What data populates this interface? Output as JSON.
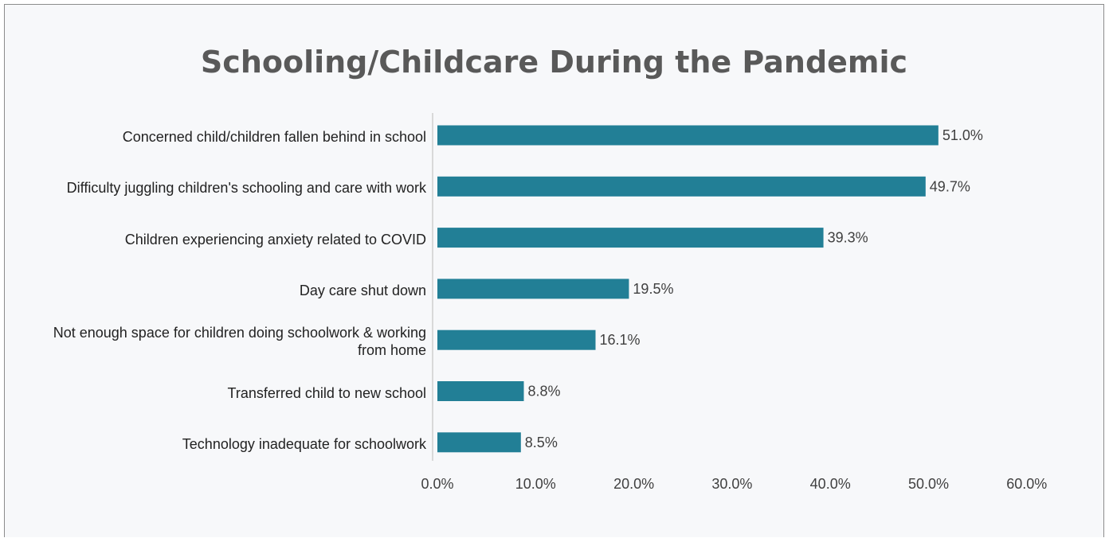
{
  "chart_data": {
    "type": "bar",
    "orientation": "horizontal",
    "title": "Schooling/Childcare During the Pandemic",
    "xlabel": "",
    "ylabel": "",
    "categories": [
      "Concerned child/children fallen behind in school",
      "Difficulty juggling children's schooling and care with work",
      "Children experiencing anxiety related to COVID",
      "Day care shut down",
      "Not enough space for children doing schoolwork & working from home",
      "Transferred child to new school",
      "Technology inadequate for schoolwork"
    ],
    "values": [
      51.0,
      49.7,
      39.3,
      19.5,
      16.1,
      8.8,
      8.5
    ],
    "value_labels": [
      "51.0%",
      "49.7%",
      "39.3%",
      "19.5%",
      "16.1%",
      "8.8%",
      "8.5%"
    ],
    "xlim": [
      0,
      60
    ],
    "x_ticks": [
      0,
      10,
      20,
      30,
      40,
      50,
      60
    ],
    "x_tick_labels": [
      "0.0%",
      "10.0%",
      "20.0%",
      "30.0%",
      "40.0%",
      "50.0%",
      "60.0%"
    ],
    "grid": false,
    "legend": "none",
    "colors": {
      "bar": "#227f96",
      "axis": "#d9d9d9",
      "title": "#595959",
      "text": "#222222"
    }
  }
}
